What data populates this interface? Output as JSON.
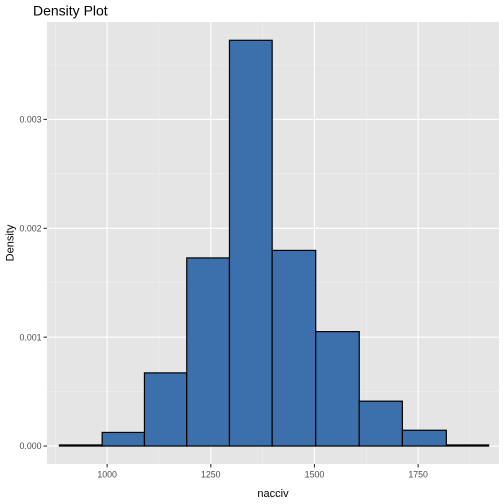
{
  "chart_data": {
    "type": "bar",
    "subtype": "histogram",
    "title": "Density Plot",
    "xlabel": "nacciv",
    "ylabel": "Density",
    "xlim": [
      855,
      1945
    ],
    "ylim": [
      -0.000165,
      0.003895
    ],
    "x_ticks": [
      1000,
      1250,
      1500,
      1750
    ],
    "x_tick_labels": [
      "1000",
      "1250",
      "1500",
      "1750"
    ],
    "y_ticks": [
      0,
      0.001,
      0.002,
      0.003
    ],
    "y_tick_labels": [
      "0.000",
      "0.001",
      "0.002",
      "0.003"
    ],
    "bins": [
      {
        "x0": 885,
        "x1": 988,
        "density": 1e-05
      },
      {
        "x0": 988,
        "x1": 1090,
        "density": 0.000125
      },
      {
        "x0": 1090,
        "x1": 1192,
        "density": 0.000672
      },
      {
        "x0": 1192,
        "x1": 1295,
        "density": 0.001728
      },
      {
        "x0": 1295,
        "x1": 1398,
        "density": 0.003727
      },
      {
        "x0": 1398,
        "x1": 1503,
        "density": 0.001797
      },
      {
        "x0": 1503,
        "x1": 1608,
        "density": 0.001051
      },
      {
        "x0": 1608,
        "x1": 1712,
        "density": 0.000412
      },
      {
        "x0": 1712,
        "x1": 1818,
        "density": 0.000145
      },
      {
        "x0": 1818,
        "x1": 1920,
        "density": 1e-05
      }
    ],
    "bar_fill": "#3b70ad",
    "bar_stroke": "#000000",
    "panel_background": "#e5e5e5",
    "grid": true,
    "legend": "none"
  }
}
